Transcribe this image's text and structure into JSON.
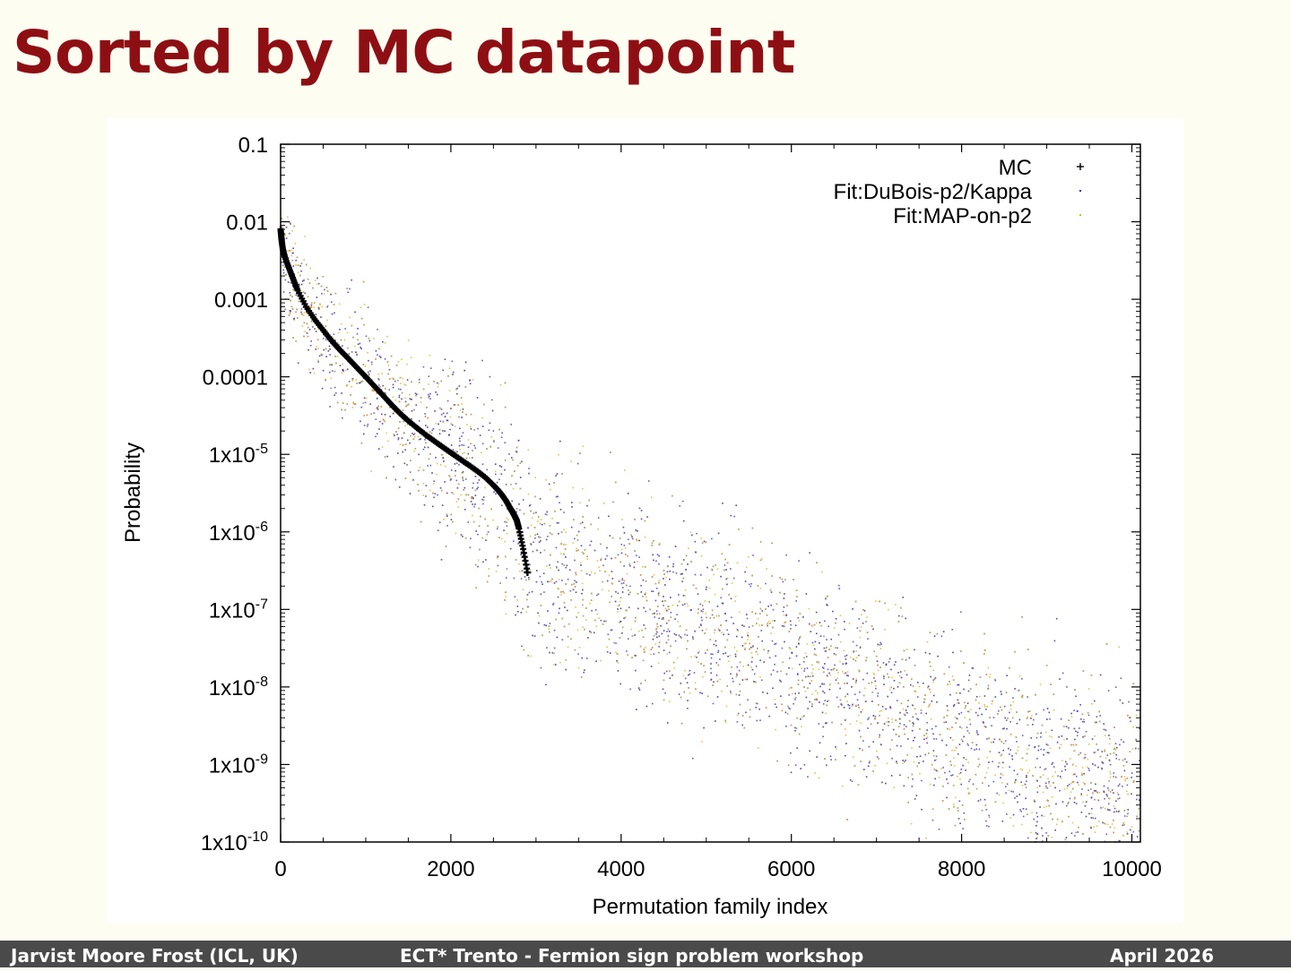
{
  "slide": {
    "title": "Sorted by MC datapoint"
  },
  "footer": {
    "author": "Jarvist Moore Frost  (ICL, UK)",
    "event": "ECT* Trento - Fermion sign problem workshop",
    "date": "April  2026"
  },
  "chart_data": {
    "type": "scatter",
    "title": "",
    "xlabel": "Permutation family index",
    "ylabel": "Probability",
    "xlim": [
      0,
      10100
    ],
    "ylim": [
      1e-10,
      0.1
    ],
    "yscale": "log",
    "grid": false,
    "legend_position": "top-right",
    "x_ticks": [
      {
        "value": 0,
        "label": "0"
      },
      {
        "value": 2000,
        "label": "2000"
      },
      {
        "value": 4000,
        "label": "4000"
      },
      {
        "value": 6000,
        "label": "6000"
      },
      {
        "value": 8000,
        "label": "8000"
      },
      {
        "value": 10000,
        "label": "10000"
      }
    ],
    "y_ticks": [
      {
        "value": 0.1,
        "mantissa": "0.1",
        "exp": ""
      },
      {
        "value": 0.01,
        "mantissa": "0.01",
        "exp": ""
      },
      {
        "value": 0.001,
        "mantissa": "0.001",
        "exp": ""
      },
      {
        "value": 0.0001,
        "mantissa": "0.0001",
        "exp": ""
      },
      {
        "value": 1e-05,
        "mantissa": "1x10",
        "exp": "-5"
      },
      {
        "value": 1e-06,
        "mantissa": "1x10",
        "exp": "-6"
      },
      {
        "value": 1e-07,
        "mantissa": "1x10",
        "exp": "-7"
      },
      {
        "value": 1e-08,
        "mantissa": "1x10",
        "exp": "-8"
      },
      {
        "value": 1e-09,
        "mantissa": "1x10",
        "exp": "-9"
      },
      {
        "value": 1e-10,
        "mantissa": "1x10",
        "exp": "-10"
      }
    ],
    "series": [
      {
        "name": "MC",
        "marker": "plus",
        "color": "#000000",
        "x": [
          0,
          10,
          25,
          50,
          100,
          150,
          200,
          300,
          400,
          500,
          600,
          700,
          800,
          900,
          1000,
          1100,
          1200,
          1300,
          1400,
          1500,
          1600,
          1700,
          1800,
          1900,
          2000,
          2100,
          2200,
          2300,
          2400,
          2500,
          2550,
          2600,
          2650,
          2700,
          2725,
          2750,
          2775,
          2800,
          2850,
          2900
        ],
        "y": [
          0.008,
          0.006,
          0.0045,
          0.0035,
          0.0025,
          0.0018,
          0.0013,
          0.0008,
          0.00055,
          0.0004,
          0.00029,
          0.00022,
          0.00017,
          0.00013,
          0.0001,
          7.6e-05,
          5.8e-05,
          4.4e-05,
          3.4e-05,
          2.7e-05,
          2.2e-05,
          1.8e-05,
          1.5e-05,
          1.25e-05,
          1.05e-05,
          8.8e-06,
          7.4e-06,
          6.2e-06,
          5.1e-06,
          4e-06,
          3.5e-06,
          3e-06,
          2.5e-06,
          2e-06,
          1.8e-06,
          1.6e-06,
          1.4e-06,
          1.1e-06,
          6e-07,
          3e-07
        ]
      },
      {
        "name": "Fit:DuBois-p2/Kappa",
        "marker": "dot",
        "color": "#2b2bc8"
      },
      {
        "name": "Fit:MAP-on-p2",
        "marker": "dot",
        "color": "#e8b020"
      }
    ]
  }
}
